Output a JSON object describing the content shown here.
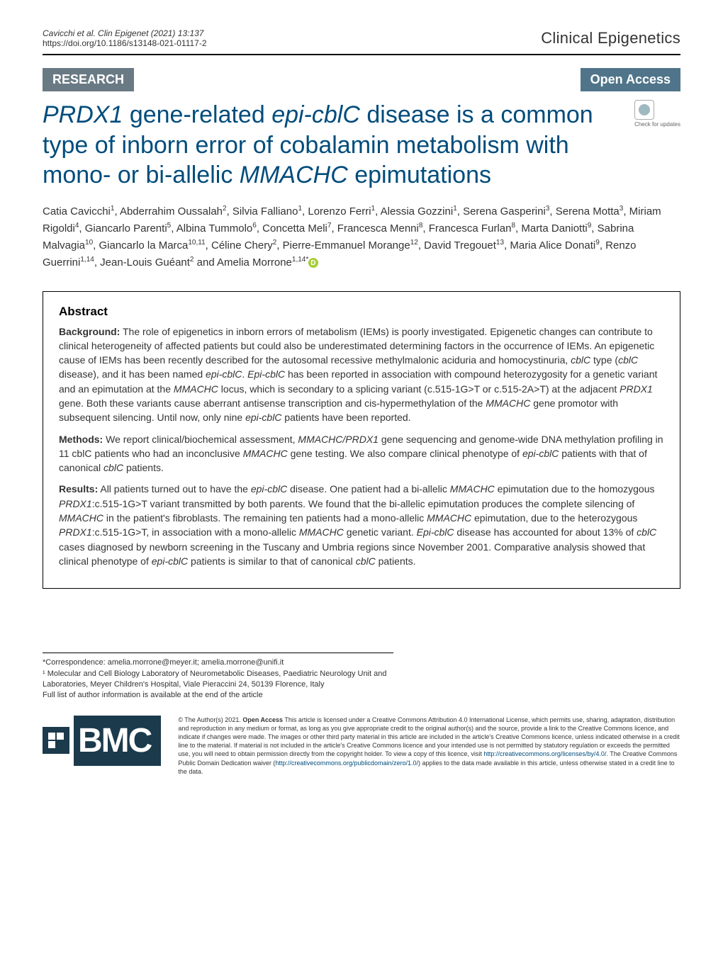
{
  "header": {
    "running_head_line1": "Cavicchi et al. Clin Epigenet     (2021) 13:137",
    "running_head_line2": "https://doi.org/10.1186/s13148-021-01117-2",
    "journal": "Clinical Epigenetics"
  },
  "category": {
    "research": "RESEARCH",
    "open_access": "Open Access"
  },
  "updates_badge": "Check for updates",
  "title_html": "<em>PRDX1</em> gene-related <em>epi-cblC</em> disease is a common type of inborn error of cobalamin metabolism with mono- or bi-allelic <em>MMACHC</em> epimutations",
  "authors_html": "Catia Cavicchi<sup>1</sup>, Abderrahim Oussalah<sup>2</sup>, Silvia Falliano<sup>1</sup>, Lorenzo Ferri<sup>1</sup>, Alessia Gozzini<sup>1</sup>, Serena Gasperini<sup>3</sup>, Serena Motta<sup>3</sup>, Miriam Rigoldi<sup>4</sup>, Giancarlo Parenti<sup>5</sup>, Albina Tummolo<sup>6</sup>, Concetta Meli<sup>7</sup>, Francesca Menni<sup>8</sup>, Francesca Furlan<sup>8</sup>, Marta Daniotti<sup>9</sup>, Sabrina Malvagia<sup>10</sup>, Giancarlo la Marca<sup>10,11</sup>, Céline Chery<sup>2</sup>, Pierre-Emmanuel Morange<sup>12</sup>, David Tregouet<sup>13</sup>, Maria Alice Donati<sup>9</sup>, Renzo Guerrini<sup>1,14</sup>, Jean-Louis Guéant<sup>2</sup> and Amelia Morrone<sup>1,14*</sup>",
  "abstract": {
    "heading": "Abstract",
    "background": {
      "label": "Background:",
      "text_html": "The role of epigenetics in inborn errors of metabolism (IEMs) is poorly investigated. Epigenetic changes can contribute to clinical heterogeneity of affected patients but could also be underestimated determining factors in the occurrence of IEMs. An epigenetic cause of IEMs has been recently described for the autosomal recessive methylmalonic aciduria and homocystinuria, <em>cblC</em> type (<em>cblC</em> disease), and it has been named <em>epi-cblC</em>. <em>Epi-cblC</em> has been reported in association with compound heterozygosity for a genetic variant and an epimutation at the <em>MMACHC</em> locus, which is secondary to a splicing variant (c.515-1G>T or c.515-2A>T) at the adjacent <em>PRDX1</em> gene. Both these variants cause aberrant antisense transcription and cis-hypermethylation of the <em>MMACHC</em> gene promotor with subsequent silencing. Until now, only nine <em>epi-cblC</em> patients have been reported."
    },
    "methods": {
      "label": "Methods:",
      "text_html": "We report clinical/biochemical assessment, <em>MMACHC/PRDX1</em> gene sequencing and genome-wide DNA methylation profiling in 11 cblC patients who had an inconclusive <em>MMACHC</em> gene testing. We also compare clinical phenotype of <em>epi-cblC</em> patients with that of canonical <em>cblC</em> patients."
    },
    "results": {
      "label": "Results:",
      "text_html": "All patients turned out to have the <em>epi-cblC</em> disease. One patient had a bi-allelic <em>MMACHC</em> epimutation due to the homozygous <em>PRDX1</em>:c.515-1G>T variant transmitted by both parents. We found that the bi-allelic epimutation produces the complete silencing of <em>MMACHC</em> in the patient's fibroblasts. The remaining ten patients had a mono-allelic <em>MMACHC</em> epimutation, due to the heterozygous <em>PRDX1</em>:c.515-1G>T, in association with a mono-allelic <em>MMACHC</em> genetic variant. <em>Epi-cblC</em> disease has accounted for about 13% of <em>cblC</em> cases diagnosed by newborn screening in the Tuscany and Umbria regions since November 2001. Comparative analysis showed that clinical phenotype of <em>epi-cblC</em> patients is similar to that of canonical <em>cblC</em> patients."
    }
  },
  "correspondence": {
    "line1": "*Correspondence: amelia.morrone@meyer.it; amelia.morrone@unifi.it",
    "line2": "¹ Molecular and Cell Biology Laboratory of Neurometabolic Diseases, Paediatric Neurology Unit and Laboratories, Meyer Children's Hospital, Viale Pieraccini 24, 50139 Florence, Italy",
    "line3": "Full list of author information is available at the end of the article"
  },
  "license": {
    "text_html": "© The Author(s) 2021. <span class=\"bold\">Open Access</span> This article is licensed under a Creative Commons Attribution 4.0 International License, which permits use, sharing, adaptation, distribution and reproduction in any medium or format, as long as you give appropriate credit to the original author(s) and the source, provide a link to the Creative Commons licence, and indicate if changes were made. The images or other third party material in this article are included in the article's Creative Commons licence, unless indicated otherwise in a credit line to the material. If material is not included in the article's Creative Commons licence and your intended use is not permitted by statutory regulation or exceeds the permitted use, you will need to obtain permission directly from the copyright holder. To view a copy of this licence, visit <a>http://creativecommons.org/licenses/by/4.0/</a>. The Creative Commons Public Domain Dedication waiver (<a>http://creativecommons.org/publicdomain/zero/1.0/</a>) applies to the data made available in this article, unless otherwise stated in a credit line to the data."
  },
  "bmc_label": "BMC",
  "colors": {
    "title_color": "#004c7c",
    "badge_bg_research": "#6a7a84",
    "badge_bg_open": "#50758a",
    "bmc_bg": "#1b3a4b",
    "link_color": "#004c7c"
  },
  "typography": {
    "title_fontsize": 34,
    "body_fontsize": 14,
    "running_head_fontsize": 12,
    "journal_fontsize": 22,
    "abstract_heading_fontsize": 17,
    "license_fontsize": 9
  }
}
